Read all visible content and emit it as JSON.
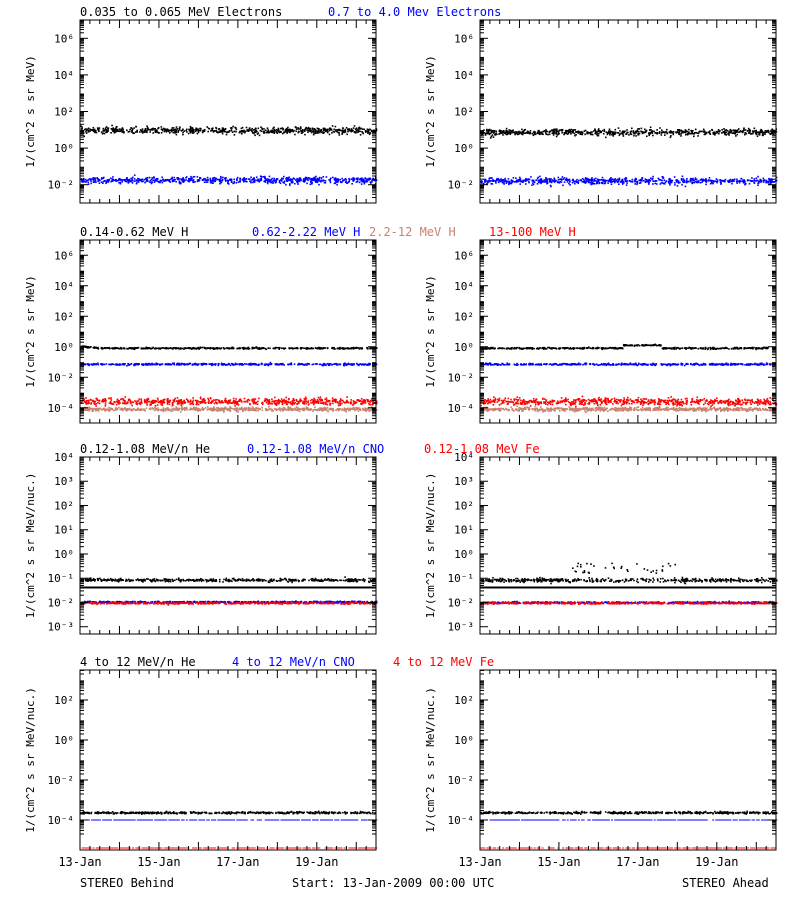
{
  "chart_data": [
    {
      "type": "scatter",
      "panel": "electrons-behind",
      "title_parts": [
        "0.035 to 0.065 MeV Electrons",
        "0.7 to 4.0 Mev Electrons"
      ],
      "ylabel": "1/(cm^2 s sr MeV)",
      "yscale": "log",
      "ylim_exp": [
        -3,
        7
      ],
      "yticks_exp": [
        -2,
        0,
        2,
        4,
        6
      ],
      "x_tick_labels": [
        "13-Jan",
        "15-Jan",
        "17-Jan",
        "19-Jan"
      ],
      "xlim_days": [
        0,
        7.5
      ],
      "series": [
        {
          "name": "0.035 to 0.065 MeV Electrons",
          "color": "#000000",
          "level_exp": 1.0,
          "spread": 0.18
        },
        {
          "name": "0.7 to 4.0 Mev Electrons",
          "color": "#0000ff",
          "level_exp": -1.72,
          "spread": 0.18
        }
      ]
    },
    {
      "type": "scatter",
      "panel": "electrons-ahead",
      "ylabel": "1/(cm^2 s sr MeV)",
      "yscale": "log",
      "ylim_exp": [
        -3,
        7
      ],
      "yticks_exp": [
        -2,
        0,
        2,
        4,
        6
      ],
      "x_tick_labels": [
        "13-Jan",
        "15-Jan",
        "17-Jan",
        "19-Jan"
      ],
      "xlim_days": [
        0,
        7.5
      ],
      "series": [
        {
          "name": "0.035 to 0.065 MeV Electrons",
          "color": "#000000",
          "level_exp": 0.9,
          "spread": 0.18
        },
        {
          "name": "0.7 to 4.0 Mev Electrons",
          "color": "#0000ff",
          "level_exp": -1.75,
          "spread": 0.18
        }
      ]
    },
    {
      "type": "scatter",
      "panel": "protons-behind",
      "title_parts": [
        "0.14-0.62 MeV H",
        "0.62-2.22 MeV H",
        "2.2-12 MeV H",
        "13-100 MeV H"
      ],
      "ylabel": "1/(cm^2 s sr MeV)",
      "yscale": "log",
      "ylim_exp": [
        -5,
        7
      ],
      "yticks_exp": [
        -4,
        -2,
        0,
        2,
        4,
        6
      ],
      "x_tick_labels": [
        "13-Jan",
        "15-Jan",
        "17-Jan",
        "19-Jan"
      ],
      "xlim_days": [
        0,
        7.5
      ],
      "series": [
        {
          "name": "0.14-0.62 MeV H",
          "color": "#000000",
          "level_exp": -0.05,
          "spread": 0.05
        },
        {
          "name": "0.62-2.22 MeV H",
          "color": "#0000ff",
          "level_exp": -1.1,
          "spread": 0.06
        },
        {
          "name": "2.2-12 MeV H",
          "color": "#c8826e",
          "level_exp": -4.05,
          "spread": 0.12
        },
        {
          "name": "13-100 MeV H",
          "color": "#ff0000",
          "level_exp": -3.55,
          "spread": 0.22
        }
      ]
    },
    {
      "type": "scatter",
      "panel": "protons-ahead",
      "ylabel": "1/(cm^2 s sr MeV)",
      "yscale": "log",
      "ylim_exp": [
        -5,
        7
      ],
      "yticks_exp": [
        -4,
        -2,
        0,
        2,
        4,
        6
      ],
      "x_tick_labels": [
        "13-Jan",
        "15-Jan",
        "17-Jan",
        "19-Jan"
      ],
      "xlim_days": [
        0,
        7.5
      ],
      "series": [
        {
          "name": "0.14-0.62 MeV H",
          "color": "#000000",
          "level_exp": -0.05,
          "spread": 0.05
        },
        {
          "name": "0.62-2.22 MeV H",
          "color": "#0000ff",
          "level_exp": -1.1,
          "spread": 0.06
        },
        {
          "name": "2.2-12 MeV H",
          "color": "#c8826e",
          "level_exp": -4.05,
          "spread": 0.12
        },
        {
          "name": "13-100 MeV H",
          "color": "#ff0000",
          "level_exp": -3.55,
          "spread": 0.22
        }
      ]
    },
    {
      "type": "scatter",
      "panel": "heavy-low-behind",
      "title_parts": [
        "0.12-1.08 MeV/n He",
        "0.12-1.08 MeV/n CNO",
        "0.12-1.08 MeV Fe"
      ],
      "ylabel": "1/(cm^2 s sr MeV/nuc.)",
      "yscale": "log",
      "ylim_exp": [
        -3.3,
        4
      ],
      "yticks_exp": [
        -3,
        -2,
        -1,
        0,
        1,
        2,
        3,
        4
      ],
      "x_tick_labels": [
        "13-Jan",
        "15-Jan",
        "17-Jan",
        "19-Jan"
      ],
      "xlim_days": [
        0,
        7.5
      ],
      "series": [
        {
          "name": "0.12-1.08 MeV/n He",
          "color": "#000000",
          "level_exp": -1.05,
          "spread": 0.06
        },
        {
          "name": "0.12-1.08 MeV/n CNO",
          "color": "#0000ff",
          "level_exp": -1.95,
          "spread": 0.03
        },
        {
          "name": "0.12-1.08 MeV Fe",
          "color": "#ff0000",
          "level_exp": -2.0,
          "spread": 0.03
        }
      ],
      "reference_line_exp": -1.38
    },
    {
      "type": "scatter",
      "panel": "heavy-low-ahead",
      "ylabel": "1/(cm^2 s sr MeV/nuc.)",
      "yscale": "log",
      "ylim_exp": [
        -3.3,
        4
      ],
      "yticks_exp": [
        -3,
        -2,
        -1,
        0,
        1,
        2,
        3,
        4
      ],
      "x_tick_labels": [
        "13-Jan",
        "15-Jan",
        "17-Jan",
        "19-Jan"
      ],
      "xlim_days": [
        0,
        7.5
      ],
      "series": [
        {
          "name": "0.12-1.08 MeV/n He",
          "color": "#000000",
          "level_exp": -1.05,
          "spread": 0.08
        },
        {
          "name": "0.12-1.08 MeV/n CNO",
          "color": "#0000ff",
          "level_exp": -1.97,
          "spread": 0.03
        },
        {
          "name": "0.12-1.08 MeV Fe",
          "color": "#ff0000",
          "level_exp": -2.0,
          "spread": 0.03
        }
      ],
      "reference_line_exp": -1.38
    },
    {
      "type": "scatter",
      "panel": "heavy-high-behind",
      "title_parts": [
        "4 to 12 MeV/n He",
        "4 to 12 MeV/n CNO",
        "4 to 12 MeV Fe"
      ],
      "ylabel": "1/(cm^2 s sr MeV/nuc.)",
      "yscale": "log",
      "ylim_exp": [
        -5.5,
        3.5
      ],
      "yticks_exp": [
        -4,
        -2,
        0,
        2
      ],
      "x_tick_labels": [
        "13-Jan",
        "15-Jan",
        "17-Jan",
        "19-Jan"
      ],
      "xlim_days": [
        0,
        7.5
      ],
      "series": [
        {
          "name": "4 to 12 MeV/n He",
          "color": "#000000",
          "level_exp": -3.6,
          "spread": 0.05
        },
        {
          "name": "4 to 12 MeV/n CNO",
          "color": "#0000ff",
          "level_exp": -4.0,
          "spread": 0.0
        },
        {
          "name": "4 to 12 MeV Fe",
          "color": "#ff0000",
          "level_exp": -5.4,
          "spread": 0.0
        }
      ]
    },
    {
      "type": "scatter",
      "panel": "heavy-high-ahead",
      "ylabel": "1/(cm^2 s sr MeV/nuc.)",
      "yscale": "log",
      "ylim_exp": [
        -5.5,
        3.5
      ],
      "yticks_exp": [
        -4,
        -2,
        0,
        2
      ],
      "x_tick_labels": [
        "13-Jan",
        "15-Jan",
        "17-Jan",
        "19-Jan"
      ],
      "xlim_days": [
        0,
        7.5
      ],
      "series": [
        {
          "name": "4 to 12 MeV/n He",
          "color": "#000000",
          "level_exp": -3.6,
          "spread": 0.05
        },
        {
          "name": "4 to 12 MeV/n CNO",
          "color": "#0000ff",
          "level_exp": -4.0,
          "spread": 0.0
        },
        {
          "name": "4 to 12 MeV Fe",
          "color": "#ff0000",
          "level_exp": -5.4,
          "spread": 0.0
        }
      ]
    }
  ],
  "footer": {
    "left": "STEREO Behind",
    "center": "Start: 13-Jan-2009 00:00 UTC",
    "right": "STEREO Ahead"
  }
}
